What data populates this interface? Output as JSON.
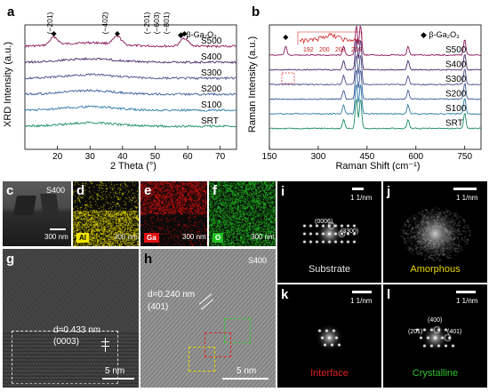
{
  "panels": {
    "a": {
      "label": "a",
      "legend": "◆ β-Ga₂O₃",
      "ylabel": "XRD Intensity (a.u.)",
      "xlabel": "2 Theta (°)",
      "peak_labels": [
        "(−201)",
        "(−402)",
        "(−201)",
        "(−603)",
        "(−801)"
      ],
      "samples": [
        "S500",
        "S400",
        "S300",
        "S200",
        "S100",
        "SRT"
      ]
    },
    "b": {
      "label": "b",
      "legend": "◆ β-Ga₂O₃",
      "ylabel": "Raman Intensity (a.u.)",
      "xlabel": "Raman Shift (cm⁻¹)",
      "inset_ticks": [
        "192",
        "200",
        "208",
        "216"
      ],
      "samples": [
        "S500",
        "S400",
        "S300",
        "S200",
        "S100",
        "SRT"
      ]
    },
    "c": {
      "label": "c",
      "tag": "S400",
      "scale": "300 nm"
    },
    "d": {
      "label": "d",
      "element": "Al",
      "scale": "300 nm"
    },
    "e": {
      "label": "e",
      "element": "Ga",
      "scale": "300 nm"
    },
    "f": {
      "label": "f",
      "element": "O",
      "scale": "300 nm"
    },
    "g": {
      "label": "g",
      "d_spacing": "d=0.433 nm",
      "plane": "(0003)",
      "scale": "5 nm"
    },
    "h": {
      "label": "h",
      "tag": "S400",
      "d_spacing": "d=0.240 nm",
      "plane": "(401)",
      "scale": "5 nm"
    },
    "i": {
      "label": "i",
      "caption": "Substrate",
      "scale": "1 1/nm",
      "spots": [
        "(0006)",
        "(3300)"
      ]
    },
    "j": {
      "label": "j",
      "caption": "Amorphous",
      "scale": "1 1/nm"
    },
    "k": {
      "label": "k",
      "caption": "Interface",
      "scale": "1 1/nm"
    },
    "l": {
      "label": "l",
      "caption": "Crystalline",
      "scale": "1 1/nm",
      "spots": [
        "(400)",
        "(201)",
        "(401)"
      ]
    }
  },
  "colors": {
    "S500": "#8b1a5c",
    "S400": "#4a2a6a",
    "S300": "#4a4f8a",
    "S200": "#3a5a9a",
    "S100": "#2a7aa8",
    "SRT": "#1a8a6a",
    "Al": "#f2e600",
    "Ga": "#e01010",
    "O": "#20c020",
    "substrate_caption": "#e8e8e8",
    "amorphous_caption": "#e8d800",
    "interface_caption": "#e02020",
    "crystalline_caption": "#30c030"
  },
  "chart_data": [
    {
      "type": "line",
      "title": "",
      "xlabel": "2 Theta (°)",
      "ylabel": "XRD Intensity (a.u.)",
      "xlim": [
        10,
        75
      ],
      "xticks": [
        20,
        30,
        40,
        50,
        60,
        70
      ],
      "grid": false,
      "legend": "top-right",
      "series": [
        {
          "name": "S500",
          "peaks": [
            18.9,
            38.4,
            59.0
          ]
        },
        {
          "name": "S400",
          "peaks": []
        },
        {
          "name": "S300",
          "peaks": []
        },
        {
          "name": "S200",
          "peaks": []
        },
        {
          "name": "S100",
          "peaks": []
        },
        {
          "name": "SRT",
          "peaks": []
        }
      ],
      "marker_positions": [
        18.9,
        38.4,
        59.0
      ]
    },
    {
      "type": "line",
      "title": "",
      "xlabel": "Raman Shift (cm⁻¹)",
      "ylabel": "Raman Intensity (a.u.)",
      "xlim": [
        150,
        800
      ],
      "xticks": [
        150,
        300,
        450,
        600,
        750
      ],
      "grid": false,
      "legend": "top-right",
      "series": [
        {
          "name": "S500",
          "peaks": [
            200,
            378,
            417,
            430,
            576,
            750
          ]
        },
        {
          "name": "S400",
          "peaks": [
            378,
            417,
            430,
            576,
            750
          ]
        },
        {
          "name": "S300",
          "peaks": [
            378,
            417,
            430,
            576,
            750
          ]
        },
        {
          "name": "S200",
          "peaks": [
            378,
            417,
            430,
            576,
            750
          ]
        },
        {
          "name": "S100",
          "peaks": [
            378,
            417,
            430,
            576,
            750
          ]
        },
        {
          "name": "SRT",
          "peaks": [
            378,
            417,
            430,
            576,
            750
          ]
        }
      ],
      "marker_positions": [
        200
      ]
    }
  ]
}
